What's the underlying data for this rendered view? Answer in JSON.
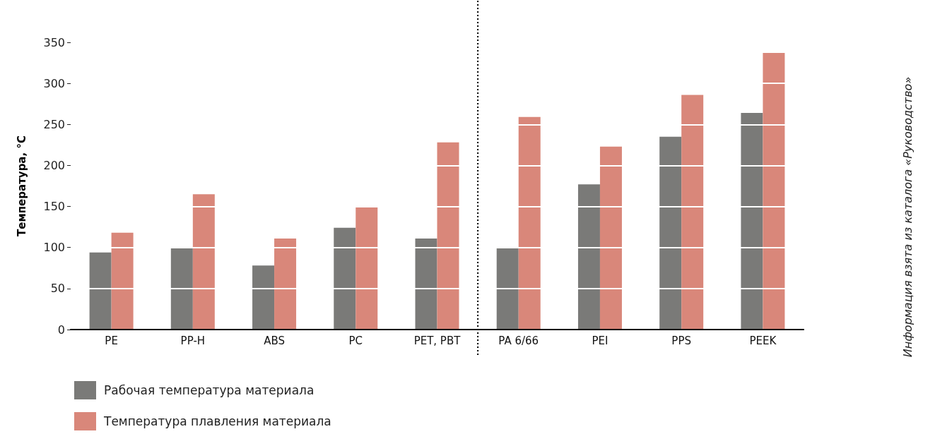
{
  "chart_data": {
    "type": "bar",
    "ylabel": "Температура, °C",
    "categories": [
      "PE",
      "PP-H",
      "ABS",
      "PC",
      "PET, PBT",
      "PA 6/66",
      "PEI",
      "PPS",
      "PEEK"
    ],
    "series": [
      {
        "name": "Рабочая температура материала",
        "color": "#7a7a78",
        "values": [
          94,
          100,
          78,
          124,
          111,
          100,
          177,
          235,
          264
        ]
      },
      {
        "name": "Температура плавления материала",
        "color": "#d9877a",
        "values": [
          118,
          165,
          111,
          150,
          228,
          259,
          223,
          286,
          337
        ]
      }
    ],
    "ylim": [
      0,
      350
    ],
    "yticks": [
      0,
      50,
      100,
      150,
      200,
      250,
      300,
      350
    ],
    "grid": "y",
    "legend": "bottom left",
    "annotations": [
      "Информация взята из каталога «Руководство»"
    ]
  }
}
